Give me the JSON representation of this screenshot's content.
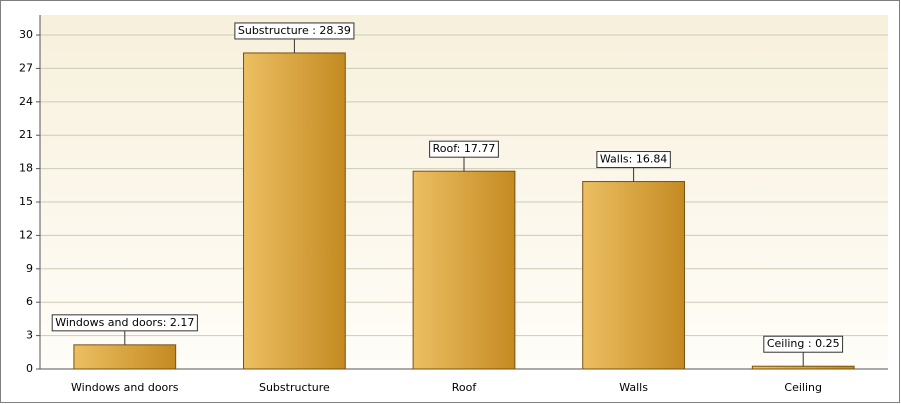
{
  "chart_data": {
    "type": "bar",
    "categories": [
      "Windows and doors",
      "Substructure",
      "Roof",
      "Walls",
      "Ceiling"
    ],
    "values": [
      2.17,
      28.39,
      17.77,
      16.84,
      0.25
    ],
    "value_labels": [
      "Windows and doors: 2.17",
      "Substructure : 28.39",
      "Roof: 17.77",
      "Walls: 16.84",
      "Ceiling : 0.25"
    ],
    "color": "#d9a33e",
    "ylim": [
      0,
      31.8
    ],
    "yticks": [
      0,
      3,
      6,
      9,
      12,
      15,
      18,
      21,
      24,
      27,
      30
    ],
    "grid": true
  }
}
